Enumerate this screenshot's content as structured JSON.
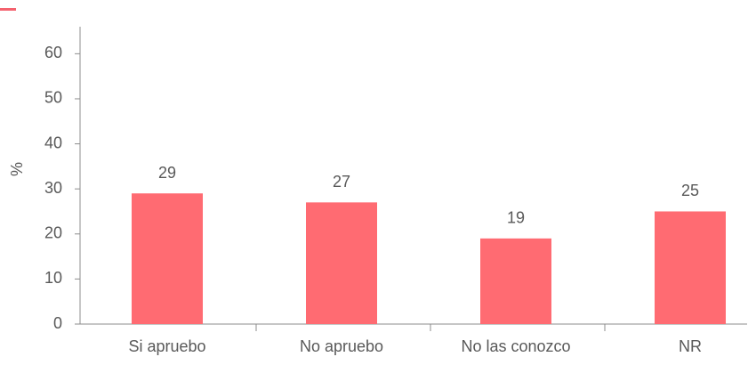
{
  "chart_data": {
    "type": "bar",
    "ylabel": "%",
    "categories": [
      "Si apruebo",
      "No apruebo",
      "No las conozco",
      "NR"
    ],
    "values": [
      29,
      27,
      19,
      25
    ],
    "color": "#ff6b72",
    "ylim": [
      0,
      66
    ],
    "yticks": [
      0,
      10,
      20,
      30,
      40,
      50,
      60
    ]
  }
}
